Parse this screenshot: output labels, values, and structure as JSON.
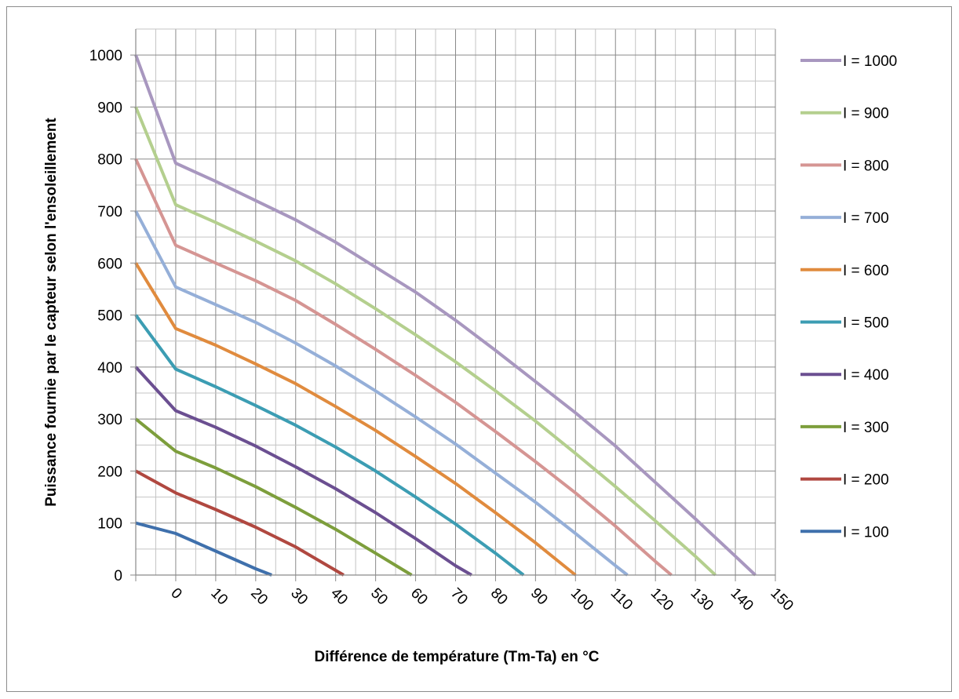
{
  "chart_data": {
    "type": "line",
    "title": "",
    "xlabel": "Différence de température (Tm-Ta) en °C",
    "ylabel": "Puissance fournie par le capteur selon l'ensoleillement",
    "x_ticks": [
      0,
      10,
      20,
      30,
      40,
      50,
      60,
      70,
      80,
      90,
      100,
      110,
      120,
      130,
      140,
      150
    ],
    "y_ticks": [
      0,
      100,
      200,
      300,
      400,
      500,
      600,
      700,
      800,
      900,
      1000
    ],
    "xlim": [
      -10,
      150
    ],
    "ylim": [
      0,
      1050
    ],
    "grid": true,
    "legend_position": "right",
    "series": [
      {
        "name": "I = 1000",
        "color": "#a897bf",
        "x": [
          -10,
          0,
          10,
          20,
          30,
          40,
          50,
          60,
          70,
          80,
          90,
          100,
          110,
          120,
          130,
          140,
          145
        ],
        "y": [
          1000,
          792,
          757,
          720,
          683,
          640,
          592,
          544,
          490,
          432,
          372,
          312,
          248,
          178,
          108,
          36,
          0
        ]
      },
      {
        "name": "I = 900",
        "color": "#b4cf8e",
        "x": [
          -10,
          0,
          10,
          20,
          30,
          40,
          50,
          60,
          70,
          80,
          90,
          100,
          110,
          120,
          130,
          135
        ],
        "y": [
          900,
          712,
          678,
          642,
          604,
          560,
          512,
          462,
          410,
          354,
          296,
          234,
          170,
          104,
          36,
          0
        ]
      },
      {
        "name": "I = 800",
        "color": "#d59593",
        "x": [
          -10,
          0,
          10,
          20,
          30,
          40,
          50,
          60,
          70,
          80,
          90,
          100,
          110,
          120,
          124
        ],
        "y": [
          800,
          634,
          600,
          566,
          528,
          482,
          434,
          384,
          332,
          276,
          218,
          158,
          94,
          26,
          0
        ]
      },
      {
        "name": "I = 700",
        "color": "#95afd8",
        "x": [
          -10,
          0,
          10,
          20,
          30,
          40,
          50,
          60,
          70,
          80,
          90,
          100,
          110,
          113
        ],
        "y": [
          700,
          554,
          520,
          486,
          446,
          402,
          354,
          304,
          252,
          196,
          140,
          80,
          18,
          0
        ]
      },
      {
        "name": "I = 600",
        "color": "#e08b3e",
        "x": [
          -10,
          0,
          10,
          20,
          30,
          40,
          50,
          60,
          70,
          80,
          90,
          100
        ],
        "y": [
          600,
          474,
          442,
          406,
          368,
          324,
          278,
          228,
          176,
          120,
          62,
          0
        ]
      },
      {
        "name": "I = 500",
        "color": "#3c9db3",
        "x": [
          -10,
          0,
          10,
          20,
          30,
          40,
          50,
          60,
          70,
          80,
          87
        ],
        "y": [
          500,
          396,
          362,
          326,
          288,
          246,
          200,
          150,
          98,
          42,
          0
        ]
      },
      {
        "name": "I = 400",
        "color": "#6b4f91",
        "x": [
          -10,
          0,
          10,
          20,
          30,
          40,
          50,
          60,
          70,
          74
        ],
        "y": [
          400,
          316,
          284,
          248,
          208,
          166,
          120,
          70,
          18,
          0
        ]
      },
      {
        "name": "I = 300",
        "color": "#7d9e3c",
        "x": [
          -10,
          0,
          10,
          20,
          30,
          40,
          50,
          59
        ],
        "y": [
          300,
          238,
          206,
          170,
          130,
          88,
          42,
          0
        ]
      },
      {
        "name": "I = 200",
        "color": "#b04840",
        "x": [
          -10,
          0,
          10,
          20,
          30,
          42
        ],
        "y": [
          200,
          158,
          126,
          92,
          54,
          0
        ]
      },
      {
        "name": "I = 100",
        "color": "#3f70ac",
        "x": [
          -10,
          0,
          10,
          20,
          24
        ],
        "y": [
          100,
          80,
          46,
          12,
          0
        ]
      }
    ]
  }
}
